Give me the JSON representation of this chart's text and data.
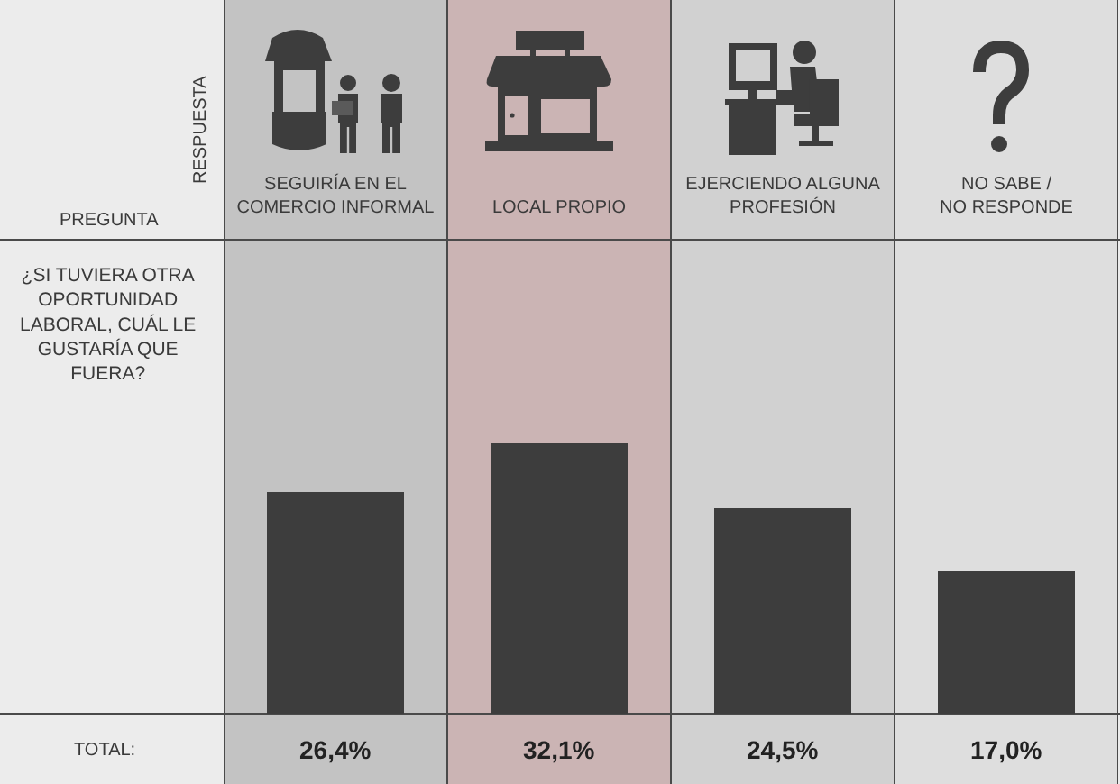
{
  "chart_data": {
    "type": "bar",
    "categories": [
      "SEGUIRÍA EN EL\nCOMERCIO INFORMAL",
      "LOCAL PROPIO",
      "EJERCIENDO ALGUNA\nPROFESIÓN",
      "NO SABE /\nNO RESPONDE"
    ],
    "values": [
      26.4,
      32.1,
      24.5,
      17.0
    ],
    "value_labels": [
      "26,4%",
      "32,1%",
      "24,5%",
      "17,0%"
    ],
    "color": "#3d3d3d",
    "bands": [
      {
        "axis": "x",
        "from": "SEGUIRÍA EN EL\nCOMERCIO INFORMAL",
        "to": "SEGUIRÍA EN EL\nCOMERCIO INFORMAL",
        "color": "#c3c3c3"
      },
      {
        "axis": "x",
        "from": "LOCAL PROPIO",
        "to": "LOCAL PROPIO",
        "color": "#cbb4b4"
      },
      {
        "axis": "x",
        "from": "EJERCIENDO ALGUNA\nPROFESIÓN",
        "to": "EJERCIENDO ALGUNA\nPROFESIÓN",
        "color": "#d1d1d1"
      },
      {
        "axis": "x",
        "from": "NO SABE /\nNO RESPONDE",
        "to": "NO SABE /\nNO RESPONDE",
        "color": "#dedede"
      }
    ],
    "annotations": [
      "RESPUESTA",
      "PREGUNTA",
      "¿SI TUVIERA OTRA OPORTUNIDAD LABORAL, CUÁL LE GUSTARÍA QUE FUERA?",
      "TOTAL:"
    ]
  }
}
